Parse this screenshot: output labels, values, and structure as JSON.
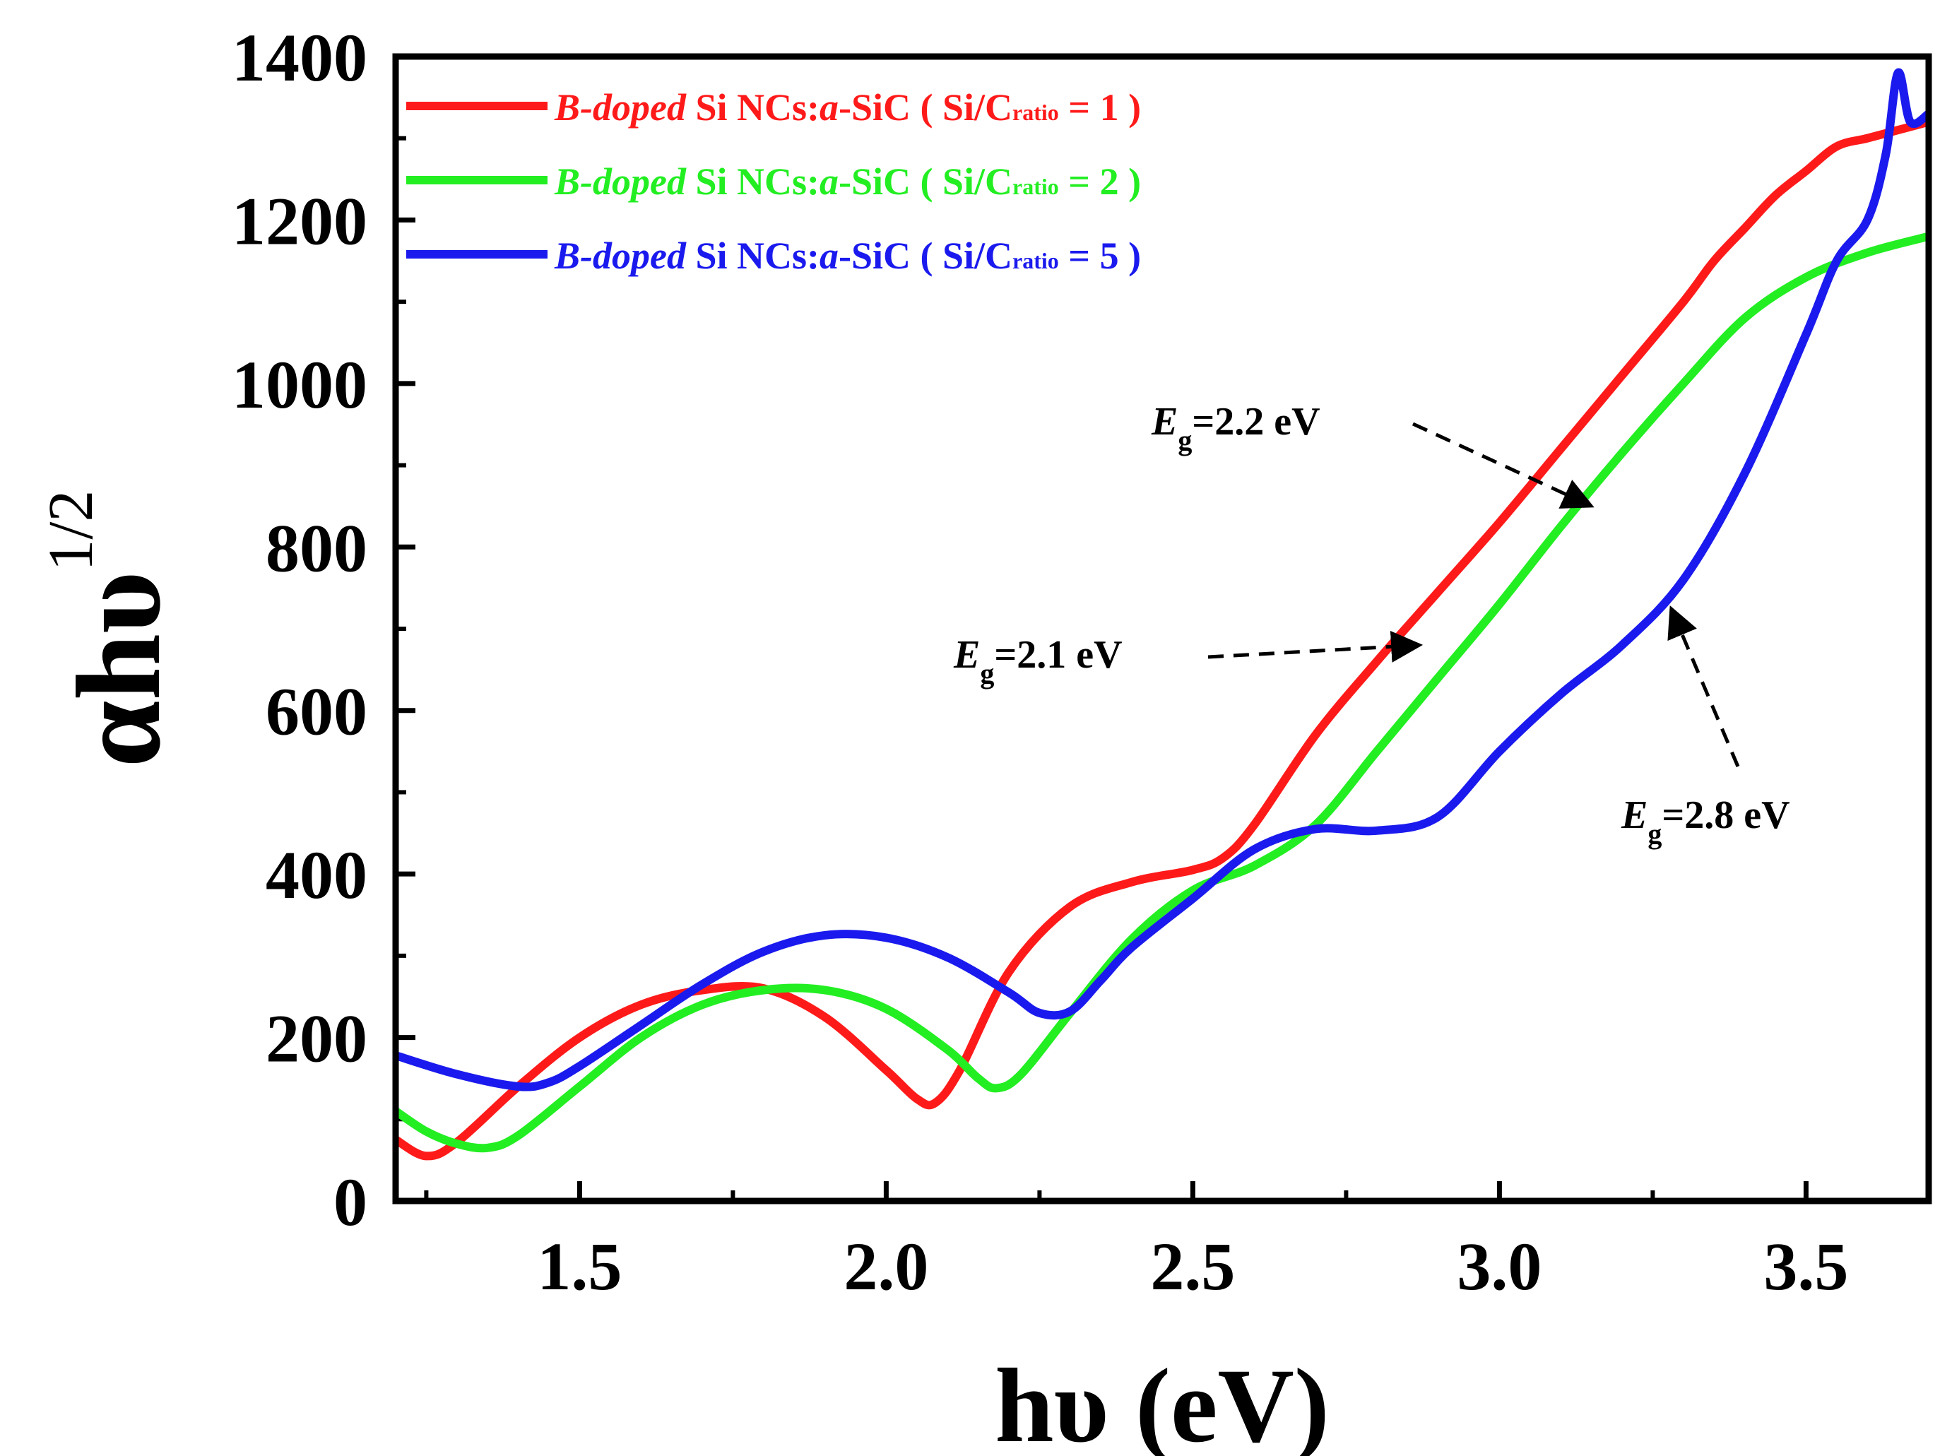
{
  "chart_data": {
    "type": "line",
    "xlabel": "hυ (eV)",
    "ylabel": {
      "base": "αhυ",
      "superscript": "1/2"
    },
    "xlim": [
      1.2,
      3.7
    ],
    "ylim": [
      0,
      1400
    ],
    "xticks": [
      1.5,
      2.0,
      2.5,
      3.0,
      3.5
    ],
    "xtick_labels": [
      "1.5",
      "2.0",
      "2.5",
      "3.0",
      "3.5"
    ],
    "yticks": [
      0,
      200,
      400,
      600,
      800,
      1000,
      1200,
      1400
    ],
    "ytick_labels": [
      "0",
      "200",
      "400",
      "600",
      "800",
      "1000",
      "1200",
      "1400"
    ],
    "legend_position": "top-left",
    "series": [
      {
        "name": "B-doped Si NCs:a-SiC ( Si/Cratio = 1 )",
        "legend": {
          "italic_prefix": "B-doped",
          "mid1": " Si NCs:",
          "italic_mid": "a",
          "mid2": "-SiC ( Si/C",
          "subscript": "ratio",
          "suffix": " = 1 )"
        },
        "color": "#ff1a1a",
        "x": [
          1.2,
          1.25,
          1.3,
          1.4,
          1.5,
          1.6,
          1.7,
          1.8,
          1.9,
          2.0,
          2.05,
          2.08,
          2.12,
          2.2,
          2.3,
          2.4,
          2.5,
          2.55,
          2.6,
          2.7,
          2.8,
          2.9,
          3.0,
          3.1,
          3.2,
          3.3,
          3.35,
          3.4,
          3.45,
          3.5,
          3.55,
          3.6,
          3.65,
          3.7
        ],
        "y": [
          75,
          55,
          72,
          140,
          200,
          240,
          258,
          260,
          225,
          160,
          125,
          120,
          160,
          280,
          360,
          390,
          405,
          420,
          460,
          570,
          660,
          745,
          830,
          920,
          1010,
          1100,
          1150,
          1190,
          1230,
          1260,
          1290,
          1300,
          1310,
          1320
        ]
      },
      {
        "name": "B-doped Si NCs:a-SiC ( Si/Cratio = 2 )",
        "legend": {
          "italic_prefix": "B-doped",
          "mid1": " Si NCs:",
          "italic_mid": "a",
          "mid2": "-SiC ( Si/C",
          "subscript": "ratio",
          "suffix": " = 2 )"
        },
        "color": "#22ee22",
        "x": [
          1.2,
          1.25,
          1.3,
          1.35,
          1.4,
          1.5,
          1.6,
          1.7,
          1.8,
          1.9,
          2.0,
          2.1,
          2.15,
          2.18,
          2.22,
          2.3,
          2.4,
          2.5,
          2.6,
          2.7,
          2.8,
          2.9,
          3.0,
          3.1,
          3.2,
          3.3,
          3.4,
          3.5,
          3.6,
          3.7
        ],
        "y": [
          110,
          85,
          70,
          65,
          80,
          140,
          200,
          240,
          258,
          258,
          235,
          185,
          150,
          138,
          155,
          230,
          320,
          380,
          410,
          460,
          550,
          640,
          730,
          825,
          915,
          1000,
          1080,
          1130,
          1160,
          1180
        ]
      },
      {
        "name": "B-doped Si NCs:a-SiC ( Si/Cratio = 5 )",
        "legend": {
          "italic_prefix": "B-doped",
          "mid1": " Si NCs:",
          "italic_mid": "a",
          "mid2": "-SiC ( Si/C",
          "subscript": "ratio",
          "suffix": " = 5 )"
        },
        "color": "#1a1aee",
        "x": [
          1.2,
          1.3,
          1.4,
          1.45,
          1.5,
          1.6,
          1.7,
          1.8,
          1.9,
          2.0,
          2.1,
          2.2,
          2.25,
          2.3,
          2.35,
          2.4,
          2.5,
          2.6,
          2.7,
          2.8,
          2.9,
          3.0,
          3.1,
          3.2,
          3.3,
          3.4,
          3.5,
          3.55,
          3.6,
          3.63,
          3.65,
          3.67,
          3.7
        ],
        "y": [
          178,
          155,
          140,
          145,
          165,
          215,
          265,
          305,
          325,
          322,
          298,
          255,
          230,
          232,
          270,
          310,
          370,
          430,
          455,
          453,
          470,
          550,
          620,
          680,
          760,
          890,
          1060,
          1150,
          1200,
          1280,
          1380,
          1320,
          1330
        ]
      }
    ],
    "annotations": [
      {
        "prefix": "E",
        "subscript": "g",
        "value": "=2.2 eV",
        "points_to": {
          "x": 3.15,
          "y": 850
        }
      },
      {
        "prefix": "E",
        "subscript": "g",
        "value": "=2.1 eV",
        "points_to": {
          "x": 2.87,
          "y": 680
        }
      },
      {
        "prefix": "E",
        "subscript": "g",
        "value": "=2.8 eV",
        "points_to": {
          "x": 3.28,
          "y": 725
        }
      }
    ]
  }
}
